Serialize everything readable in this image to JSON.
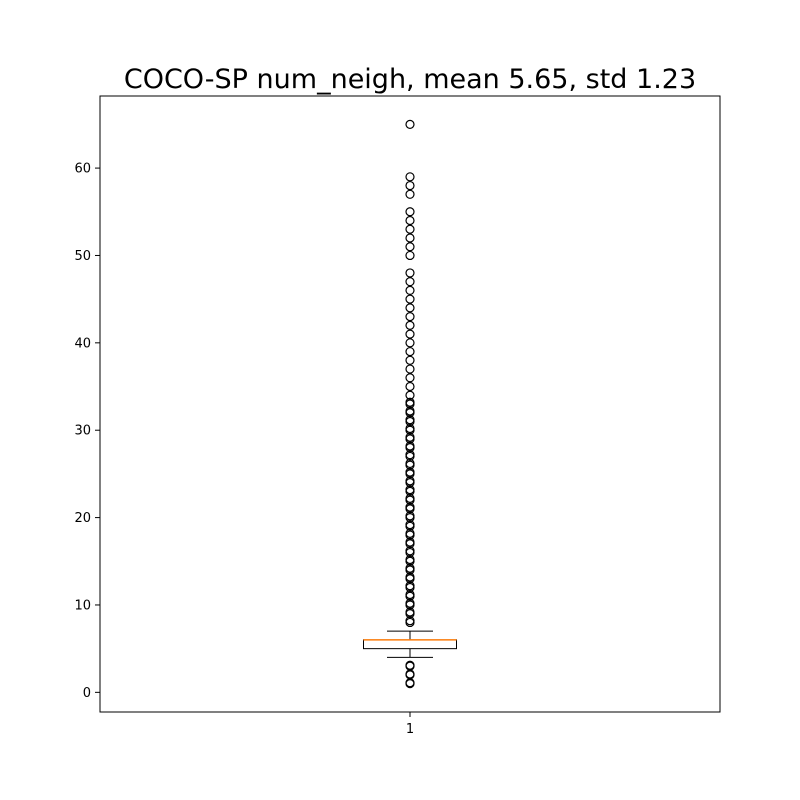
{
  "chart_data": {
    "type": "boxplot",
    "title": "COCO-SP num_neigh, mean 5.65, std 1.23",
    "xlabel": "",
    "ylabel": "",
    "categories": [
      "1"
    ],
    "ylim": [
      -2.25,
      68.25
    ],
    "yticks": [
      0,
      10,
      20,
      30,
      40,
      50,
      60
    ],
    "grid": false,
    "series": [
      {
        "whisker_low": 4,
        "q1": 5,
        "median": 6,
        "q3": 6,
        "whisker_high": 7,
        "outliers": [
          1,
          1.1,
          2,
          2.1,
          3,
          3.1,
          8,
          8.2,
          9,
          9.2,
          10,
          10.2,
          11,
          11.2,
          12,
          12.2,
          13,
          13.2,
          14,
          14.2,
          15,
          15.2,
          16,
          16.2,
          17,
          17.2,
          18,
          18.2,
          19,
          19.2,
          20,
          20.2,
          21,
          21.2,
          22,
          22.2,
          23,
          23.2,
          24,
          24.2,
          25,
          25.2,
          26,
          26.2,
          27,
          27.2,
          28,
          28.2,
          29,
          29.2,
          30,
          30.2,
          31,
          31.2,
          32,
          32.2,
          33,
          33.2,
          34,
          35,
          36,
          37,
          38,
          39,
          40,
          41,
          42,
          43,
          44,
          45,
          46,
          47,
          48,
          50,
          51,
          52,
          53,
          54,
          55,
          57,
          58,
          59,
          65
        ]
      }
    ],
    "colors": {
      "box": "#000000",
      "median": "#ff7f0e",
      "outlier_edge": "#000000"
    }
  }
}
